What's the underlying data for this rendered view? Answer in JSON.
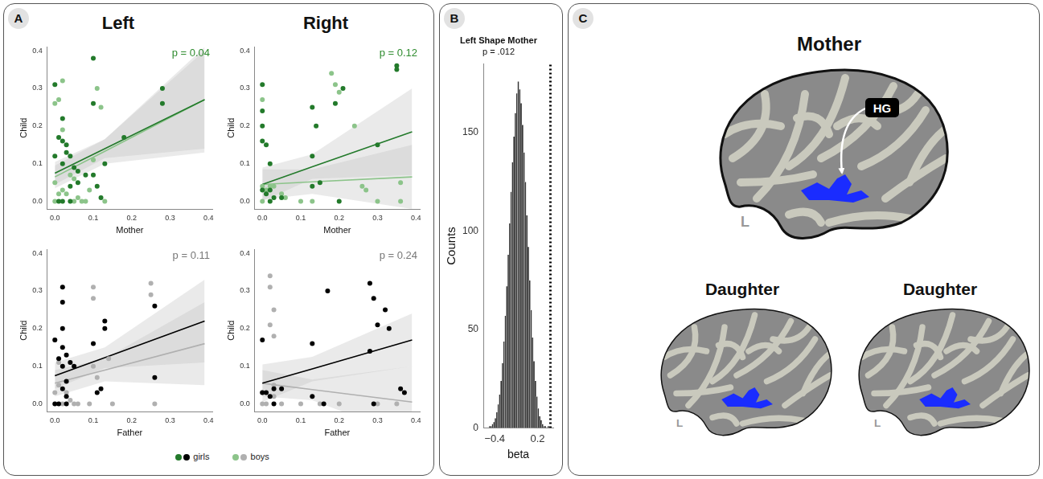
{
  "panel_labels": [
    "A",
    "B",
    "C"
  ],
  "column_titles": [
    "Left",
    "Right"
  ],
  "legend": [
    {
      "name": "girls",
      "colors": [
        "#237a2b",
        "#000000"
      ]
    },
    {
      "name": "boys",
      "colors": [
        "#8cc48a",
        "#b0b0b0"
      ]
    }
  ],
  "chart_data": [
    {
      "type": "scatter",
      "x_label": "Mother",
      "y_label": "Child",
      "xlim": [
        -0.02,
        0.41
      ],
      "ylim": [
        -0.02,
        0.41
      ],
      "xticks": [
        {
          "value": 0,
          "label": "0.0"
        },
        0.1,
        0.2,
        0.3,
        0.4
      ],
      "yticks": [
        {
          "value": 0,
          "label": "0.0"
        },
        0.1,
        0.2,
        0.3,
        0.4
      ],
      "annotation": {
        "text": "p = 0.04",
        "color": "#2e8b2e"
      },
      "series": [
        {
          "name": "girls",
          "color": "#237a2b",
          "x": [
            0.0,
            0.01,
            0.0,
            0.01,
            0.02,
            0.02,
            0.03,
            0.03,
            0.04,
            0.02,
            0.05,
            0.06,
            0.08,
            0.06,
            0.04,
            0.1,
            0.1,
            0.1,
            0.11,
            0.12,
            0.13,
            0.18,
            0.28,
            0.28,
            0.02,
            0.04
          ],
          "values": [
            0.31,
            0.17,
            0.12,
            0.0,
            0.22,
            0.16,
            0.15,
            0.13,
            0.12,
            0.1,
            0.09,
            0.08,
            0.07,
            0.05,
            0.04,
            0.38,
            0.26,
            0.07,
            0.04,
            0.01,
            0.1,
            0.17,
            0.3,
            0.26,
            0.0,
            0.0
          ],
          "fit": {
            "x": [
              0,
              0.13,
              0.39
            ],
            "values": [
              0.075,
              0.14,
              0.27
            ],
            "ci_lower": [
              0.045,
              0.115,
              0.14
            ],
            "ci_upper": [
              0.105,
              0.165,
              0.4
            ]
          }
        },
        {
          "name": "boys",
          "color": "#8cc48a",
          "x": [
            0.0,
            0.02,
            0.01,
            0.02,
            0.0,
            0.01,
            0.0,
            0.02,
            0.03,
            0.05,
            0.06,
            0.08,
            0.1,
            0.11,
            0.12,
            0.09,
            0.07,
            0.05,
            0.04,
            0.13
          ],
          "values": [
            0.26,
            0.32,
            0.27,
            0.19,
            0.05,
            0.02,
            0.0,
            0.03,
            0.02,
            0.06,
            0.01,
            0.0,
            0.11,
            0.3,
            0.25,
            0.03,
            0.0,
            0.0,
            0.07,
            0.0
          ],
          "fit": {
            "x": [
              0,
              0.13,
              0.39
            ],
            "values": [
              0.065,
              0.133,
              0.27
            ],
            "ci_lower": [
              0.035,
              0.1,
              0.13
            ],
            "ci_upper": [
              0.095,
              0.165,
              0.41
            ]
          }
        }
      ]
    },
    {
      "type": "scatter",
      "x_label": "Mother",
      "y_label": "Child",
      "xlim": [
        -0.02,
        0.41
      ],
      "ylim": [
        -0.02,
        0.41
      ],
      "xticks": [
        {
          "value": 0,
          "label": "0.0"
        },
        0.1,
        0.2,
        0.3,
        0.4
      ],
      "yticks": [
        {
          "value": 0,
          "label": "0.0"
        },
        0.1,
        0.2,
        0.3,
        0.4
      ],
      "annotation": {
        "text": "p = 0.12",
        "color": "#2e8b2e"
      },
      "series": [
        {
          "name": "girls",
          "color": "#237a2b",
          "x": [
            0.0,
            0.0,
            0.0,
            0.0,
            0.01,
            0.02,
            0.0,
            0.01,
            0.02,
            0.03,
            0.05,
            0.13,
            0.14,
            0.13,
            0.13,
            0.15,
            0.19,
            0.21,
            0.3,
            0.35,
            0.35,
            0.2,
            0.02
          ],
          "values": [
            0.31,
            0.24,
            0.2,
            0.16,
            0.15,
            0.1,
            0.03,
            0.02,
            0.03,
            0.01,
            0.01,
            0.25,
            0.2,
            0.12,
            0.04,
            0.05,
            0.26,
            0.3,
            0.15,
            0.36,
            0.35,
            0.0,
            0.0
          ],
          "fit": {
            "x": [
              0,
              0.13,
              0.39
            ],
            "values": [
              0.045,
              0.092,
              0.185
            ],
            "ci_lower": [
              0.0,
              0.06,
              0.07
            ],
            "ci_upper": [
              0.09,
              0.125,
              0.3
            ]
          }
        },
        {
          "name": "boys",
          "color": "#8cc48a",
          "x": [
            0.0,
            0.0,
            0.01,
            0.02,
            0.03,
            0.05,
            0.06,
            0.1,
            0.18,
            0.2,
            0.19,
            0.24,
            0.26,
            0.27,
            0.36,
            0.36,
            0.3,
            0.13,
            0.0
          ],
          "values": [
            0.27,
            0.04,
            0.03,
            0.04,
            0.04,
            0.02,
            0.01,
            0.0,
            0.34,
            0.29,
            0.31,
            0.2,
            0.04,
            0.03,
            0.05,
            0.0,
            0.0,
            0.0,
            0.0
          ],
          "fit": {
            "x": [
              0,
              0.13,
              0.39
            ],
            "values": [
              0.045,
              0.052,
              0.065
            ],
            "ci_lower": [
              0.005,
              0.02,
              -0.02
            ],
            "ci_upper": [
              0.085,
              0.085,
              0.15
            ]
          }
        }
      ]
    },
    {
      "type": "scatter",
      "x_label": "Father",
      "y_label": "Child",
      "xlim": [
        -0.02,
        0.41
      ],
      "ylim": [
        -0.02,
        0.41
      ],
      "xticks": [
        {
          "value": 0,
          "label": "0.0"
        },
        0.1,
        0.2,
        0.3,
        0.4
      ],
      "yticks": [
        {
          "value": 0,
          "label": "0.0"
        },
        0.1,
        0.2,
        0.3,
        0.4
      ],
      "annotation": {
        "text": "p = 0.11",
        "color": "#777777"
      },
      "series": [
        {
          "name": "girls",
          "color": "#000000",
          "x": [
            0.02,
            0.02,
            0.0,
            0.02,
            0.02,
            0.01,
            0.03,
            0.02,
            0.04,
            0.05,
            0.03,
            0.02,
            0.0,
            0.01,
            0.03,
            0.1,
            0.11,
            0.12,
            0.13,
            0.13,
            0.26,
            0.26,
            0.03
          ],
          "values": [
            0.31,
            0.27,
            0.17,
            0.2,
            0.15,
            0.12,
            0.13,
            0.1,
            0.11,
            0.1,
            0.06,
            0.04,
            0.0,
            0.0,
            0.0,
            0.16,
            0.03,
            0.04,
            0.22,
            0.2,
            0.26,
            0.07,
            0.02
          ],
          "fit": {
            "x": [
              0,
              0.13,
              0.39
            ],
            "values": [
              0.075,
              0.123,
              0.22
            ],
            "ci_lower": [
              0.04,
              0.095,
              0.11
            ],
            "ci_upper": [
              0.11,
              0.15,
              0.33
            ]
          }
        },
        {
          "name": "boys",
          "color": "#b0b0b0",
          "x": [
            0.0,
            0.01,
            0.01,
            0.0,
            0.02,
            0.04,
            0.05,
            0.06,
            0.1,
            0.1,
            0.1,
            0.11,
            0.09,
            0.14,
            0.15,
            0.25,
            0.25,
            0.26,
            0.03
          ],
          "values": [
            0.17,
            0.11,
            0.05,
            0.03,
            0.0,
            0.01,
            0.0,
            0.0,
            0.31,
            0.28,
            0.1,
            0.07,
            0.0,
            0.12,
            0.0,
            0.32,
            0.29,
            0.0,
            0.03
          ],
          "fit": {
            "x": [
              0,
              0.13,
              0.39
            ],
            "values": [
              0.055,
              0.09,
              0.16
            ],
            "ci_lower": [
              0.02,
              0.06,
              0.05
            ],
            "ci_upper": [
              0.09,
              0.12,
              0.27
            ]
          }
        }
      ]
    },
    {
      "type": "scatter",
      "x_label": "Father",
      "y_label": "Child",
      "xlim": [
        -0.02,
        0.41
      ],
      "ylim": [
        -0.02,
        0.41
      ],
      "xticks": [
        {
          "value": 0,
          "label": "0.0"
        },
        0.1,
        0.2,
        0.3,
        0.4
      ],
      "yticks": [
        {
          "value": 0,
          "label": "0.0"
        },
        0.1,
        0.2,
        0.3,
        0.4
      ],
      "annotation": {
        "text": "p = 0.24",
        "color": "#777777"
      },
      "series": [
        {
          "name": "girls",
          "color": "#000000",
          "x": [
            0.0,
            0.0,
            0.01,
            0.02,
            0.03,
            0.05,
            0.03,
            0.13,
            0.13,
            0.17,
            0.16,
            0.28,
            0.29,
            0.28,
            0.3,
            0.32,
            0.33,
            0.36,
            0.37,
            0.29
          ],
          "values": [
            0.17,
            0.03,
            0.03,
            0.02,
            0.04,
            0.04,
            0.0,
            0.16,
            0.02,
            0.3,
            0.0,
            0.32,
            0.28,
            0.14,
            0.21,
            0.25,
            0.2,
            0.04,
            0.03,
            0.0
          ],
          "fit": {
            "x": [
              0,
              0.13,
              0.39
            ],
            "values": [
              0.055,
              0.093,
              0.17
            ],
            "ci_lower": [
              0.005,
              0.06,
              0.1
            ],
            "ci_upper": [
              0.105,
              0.125,
              0.24
            ]
          }
        },
        {
          "name": "boys",
          "color": "#b0b0b0",
          "x": [
            0.02,
            0.02,
            0.03,
            0.02,
            0.03,
            0.03,
            0.0,
            0.01,
            0.03,
            0.05,
            0.1,
            0.15,
            0.2,
            0.3,
            0.35,
            0.0
          ],
          "values": [
            0.34,
            0.31,
            0.25,
            0.21,
            0.18,
            0.05,
            0.03,
            0.0,
            0.02,
            0.0,
            0.0,
            0.0,
            0.0,
            0.0,
            0.0,
            0.0
          ],
          "fit": {
            "x": [
              0,
              0.13,
              0.39
            ],
            "values": [
              0.055,
              0.038,
              0.005
            ],
            "ci_lower": [
              0.02,
              0.01,
              -0.09
            ],
            "ci_upper": [
              0.09,
              0.065,
              0.1
            ]
          }
        }
      ]
    },
    {
      "type": "histogram",
      "title": "Left Shape Mother",
      "subtitle": "p = .012",
      "x_label": "beta",
      "y_label": "Counts",
      "color": "#333333",
      "bins": [
        -0.48,
        -0.46,
        -0.44,
        -0.42,
        -0.4,
        -0.38,
        -0.36,
        -0.34,
        -0.32,
        -0.3,
        -0.28,
        -0.26,
        -0.24,
        -0.22,
        -0.2,
        -0.18,
        -0.16,
        -0.14,
        -0.12,
        -0.1,
        -0.08,
        -0.06,
        -0.04,
        -0.02,
        0,
        0.02,
        0.04,
        0.06,
        0.08,
        0.1,
        0.12,
        0.14,
        0.16,
        0.18,
        0.2,
        0.22,
        0.24,
        0.26,
        0.28,
        0.3,
        0.32,
        0.34,
        0.36
      ],
      "counts": [
        1,
        1,
        2,
        3,
        5,
        8,
        12,
        17,
        24,
        33,
        44,
        57,
        72,
        88,
        104,
        120,
        135,
        148,
        160,
        170,
        176,
        172,
        165,
        154,
        140,
        125,
        108,
        92,
        75,
        60,
        46,
        34,
        24,
        16,
        10,
        6,
        4,
        2,
        1,
        1,
        0,
        1
      ],
      "xlim": [
        -0.56,
        0.42
      ],
      "xticks": [
        {
          "value": -0.4,
          "label": "−0.4"
        },
        0.2
      ],
      "ylim": [
        0,
        185
      ],
      "yticks": [
        0,
        50,
        100,
        150
      ],
      "reference_line": {
        "x": 0.38,
        "line_style": "dotted"
      }
    }
  ],
  "brain_diagram": {
    "region_color": "#1a2cff",
    "top": {
      "title": "Mother",
      "region_label": "HG",
      "hemisphere_label": "L"
    },
    "bottom": [
      {
        "title": "Daughter",
        "hemisphere_label": "L"
      },
      {
        "title": "Daughter",
        "hemisphere_label": "L"
      }
    ]
  }
}
